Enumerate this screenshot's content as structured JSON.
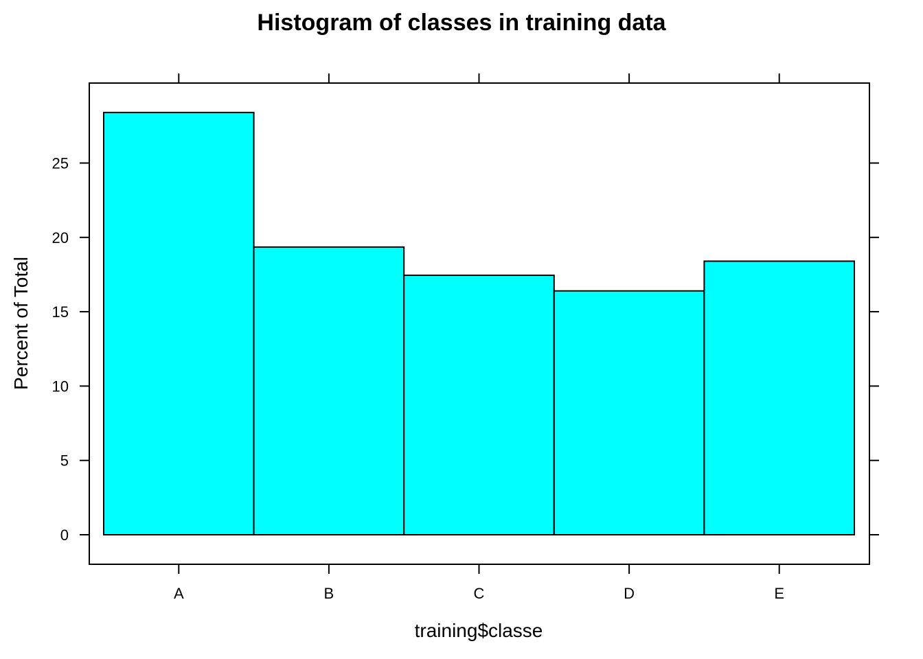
{
  "chart_data": {
    "type": "bar",
    "title": "Histogram of classes in training data",
    "xlabel": "training$classe",
    "ylabel": "Percent of Total",
    "categories": [
      "A",
      "B",
      "C",
      "D",
      "E"
    ],
    "values": [
      28.4,
      19.35,
      17.45,
      16.4,
      18.4
    ],
    "ylim": [
      -2,
      30
    ],
    "yticks": [
      0,
      5,
      10,
      15,
      20,
      25
    ],
    "grid": false,
    "legend": "none",
    "colors": {
      "bar_fill": "#00ffff",
      "bar_stroke": "#000000"
    }
  }
}
